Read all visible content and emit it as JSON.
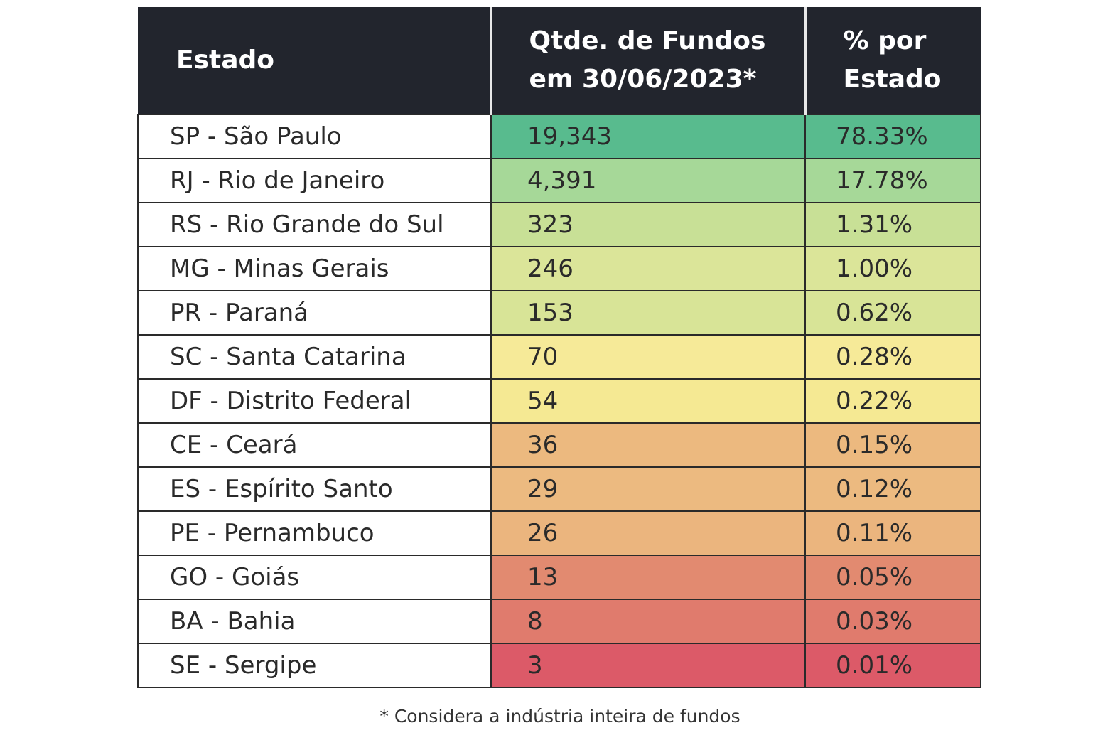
{
  "chart_data": {
    "type": "table",
    "columns": [
      "Estado",
      "Qtde. de Fundos em 30/06/2023*",
      "% por Estado"
    ],
    "rows": [
      {
        "estado": "SP - São Paulo",
        "qtde": "19,343",
        "pct": "78.33%",
        "color": "#58bb8e"
      },
      {
        "estado": "RJ - Rio de Janeiro",
        "qtde": "4,391",
        "pct": "17.78%",
        "color": "#a6d898"
      },
      {
        "estado": "RS - Rio Grande do Sul",
        "qtde": "323",
        "pct": "1.31%",
        "color": "#c8e096"
      },
      {
        "estado": "MG - Minas Gerais",
        "qtde": "246",
        "pct": "1.00%",
        "color": "#dbe599"
      },
      {
        "estado": "PR - Paraná",
        "qtde": "153",
        "pct": "0.62%",
        "color": "#d8e497"
      },
      {
        "estado": "SC - Santa Catarina",
        "qtde": "70",
        "pct": "0.28%",
        "color": "#f6ea98"
      },
      {
        "estado": "DF - Distrito Federal",
        "qtde": "54",
        "pct": "0.22%",
        "color": "#f5e993"
      },
      {
        "estado": "CE - Ceará",
        "qtde": "36",
        "pct": "0.15%",
        "color": "#ecb97f"
      },
      {
        "estado": "ES - Espírito Santo",
        "qtde": "29",
        "pct": "0.12%",
        "color": "#ecba80"
      },
      {
        "estado": "PE - Pernambuco",
        "qtde": "26",
        "pct": "0.11%",
        "color": "#ebb57e"
      },
      {
        "estado": "GO - Goiás",
        "qtde": "13",
        "pct": "0.05%",
        "color": "#e28a70"
      },
      {
        "estado": "BA - Bahia",
        "qtde": "8",
        "pct": "0.03%",
        "color": "#e07b6d"
      },
      {
        "estado": "SE - Sergipe",
        "qtde": "3",
        "pct": "0.01%",
        "color": "#dc5a68"
      }
    ],
    "footnote": "* Considera a indústria inteira de fundos"
  },
  "header": {
    "col1": "Estado",
    "col2_line1": "Qtde. de Fundos",
    "col2_line2": "em 30/06/2023*",
    "col3_line1": "% por",
    "col3_line2": "Estado"
  }
}
